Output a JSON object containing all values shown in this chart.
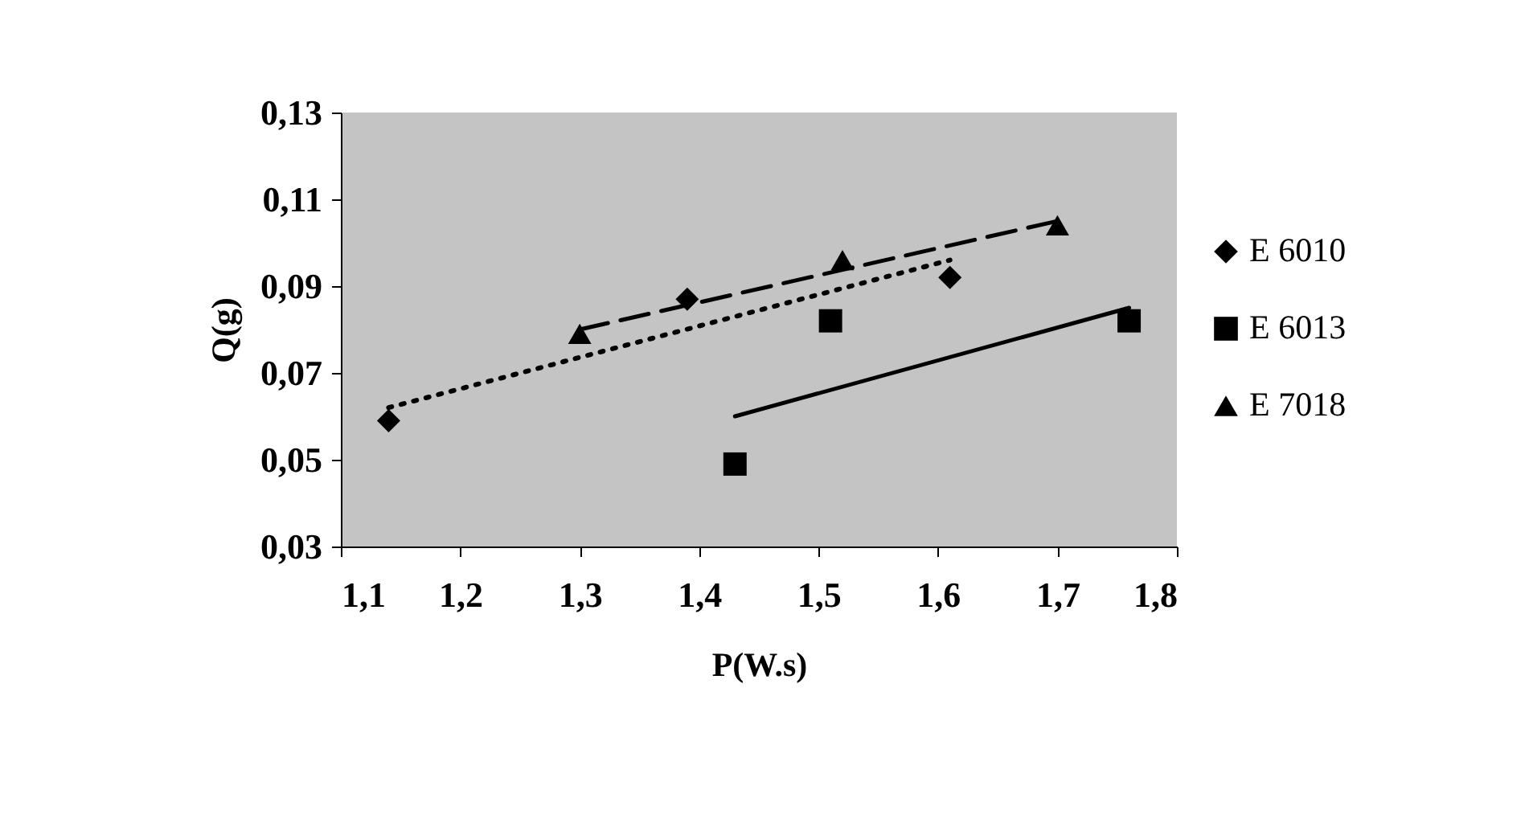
{
  "chart_data": {
    "type": "scatter",
    "xlabel": "P(W.s)",
    "ylabel": "Q(g)",
    "xlim": [
      1.1,
      1.8
    ],
    "xticks": [
      {
        "value": 1.1,
        "label": "1,1"
      },
      {
        "value": 1.2,
        "label": "1,2"
      },
      {
        "value": 1.3,
        "label": "1,3"
      },
      {
        "value": 1.4,
        "label": "1,4"
      },
      {
        "value": 1.5,
        "label": "1,5"
      },
      {
        "value": 1.6,
        "label": "1,6"
      },
      {
        "value": 1.7,
        "label": "1,7"
      },
      {
        "value": 1.8,
        "label": "1,8"
      }
    ],
    "ylim": [
      0.03,
      0.13
    ],
    "yticks": [
      {
        "value": 0.03,
        "label": "0,03"
      },
      {
        "value": 0.05,
        "label": "0,05"
      },
      {
        "value": 0.07,
        "label": "0,07"
      },
      {
        "value": 0.09,
        "label": "0,09"
      },
      {
        "value": 0.11,
        "label": "0,11"
      },
      {
        "value": 0.13,
        "label": "0,13"
      }
    ],
    "legend": "right",
    "series": [
      {
        "name": "E 6010",
        "marker": "diamond",
        "color": "#000000",
        "x": [
          1.14,
          1.39,
          1.61
        ],
        "values": [
          0.059,
          0.087,
          0.092
        ]
      },
      {
        "name": "E 6013",
        "marker": "square",
        "color": "#000000",
        "x": [
          1.43,
          1.51,
          1.76
        ],
        "values": [
          0.049,
          0.082,
          0.082
        ]
      },
      {
        "name": "E 7018",
        "marker": "triangle",
        "color": "#000000",
        "x": [
          1.3,
          1.52,
          1.7
        ],
        "values": [
          0.079,
          0.096,
          0.104
        ]
      },
      {
        "type": "line",
        "line_style": "dotted",
        "color": "#000000",
        "x": [
          1.14,
          1.61
        ],
        "values": [
          0.062,
          0.096
        ]
      },
      {
        "type": "line",
        "line_style": "solid",
        "color": "#000000",
        "x": [
          1.43,
          1.76
        ],
        "values": [
          0.06,
          0.085
        ]
      },
      {
        "type": "line",
        "line_style": "dashed",
        "color": "#000000",
        "x": [
          1.3,
          1.7
        ],
        "values": [
          0.08,
          0.105
        ]
      }
    ]
  }
}
